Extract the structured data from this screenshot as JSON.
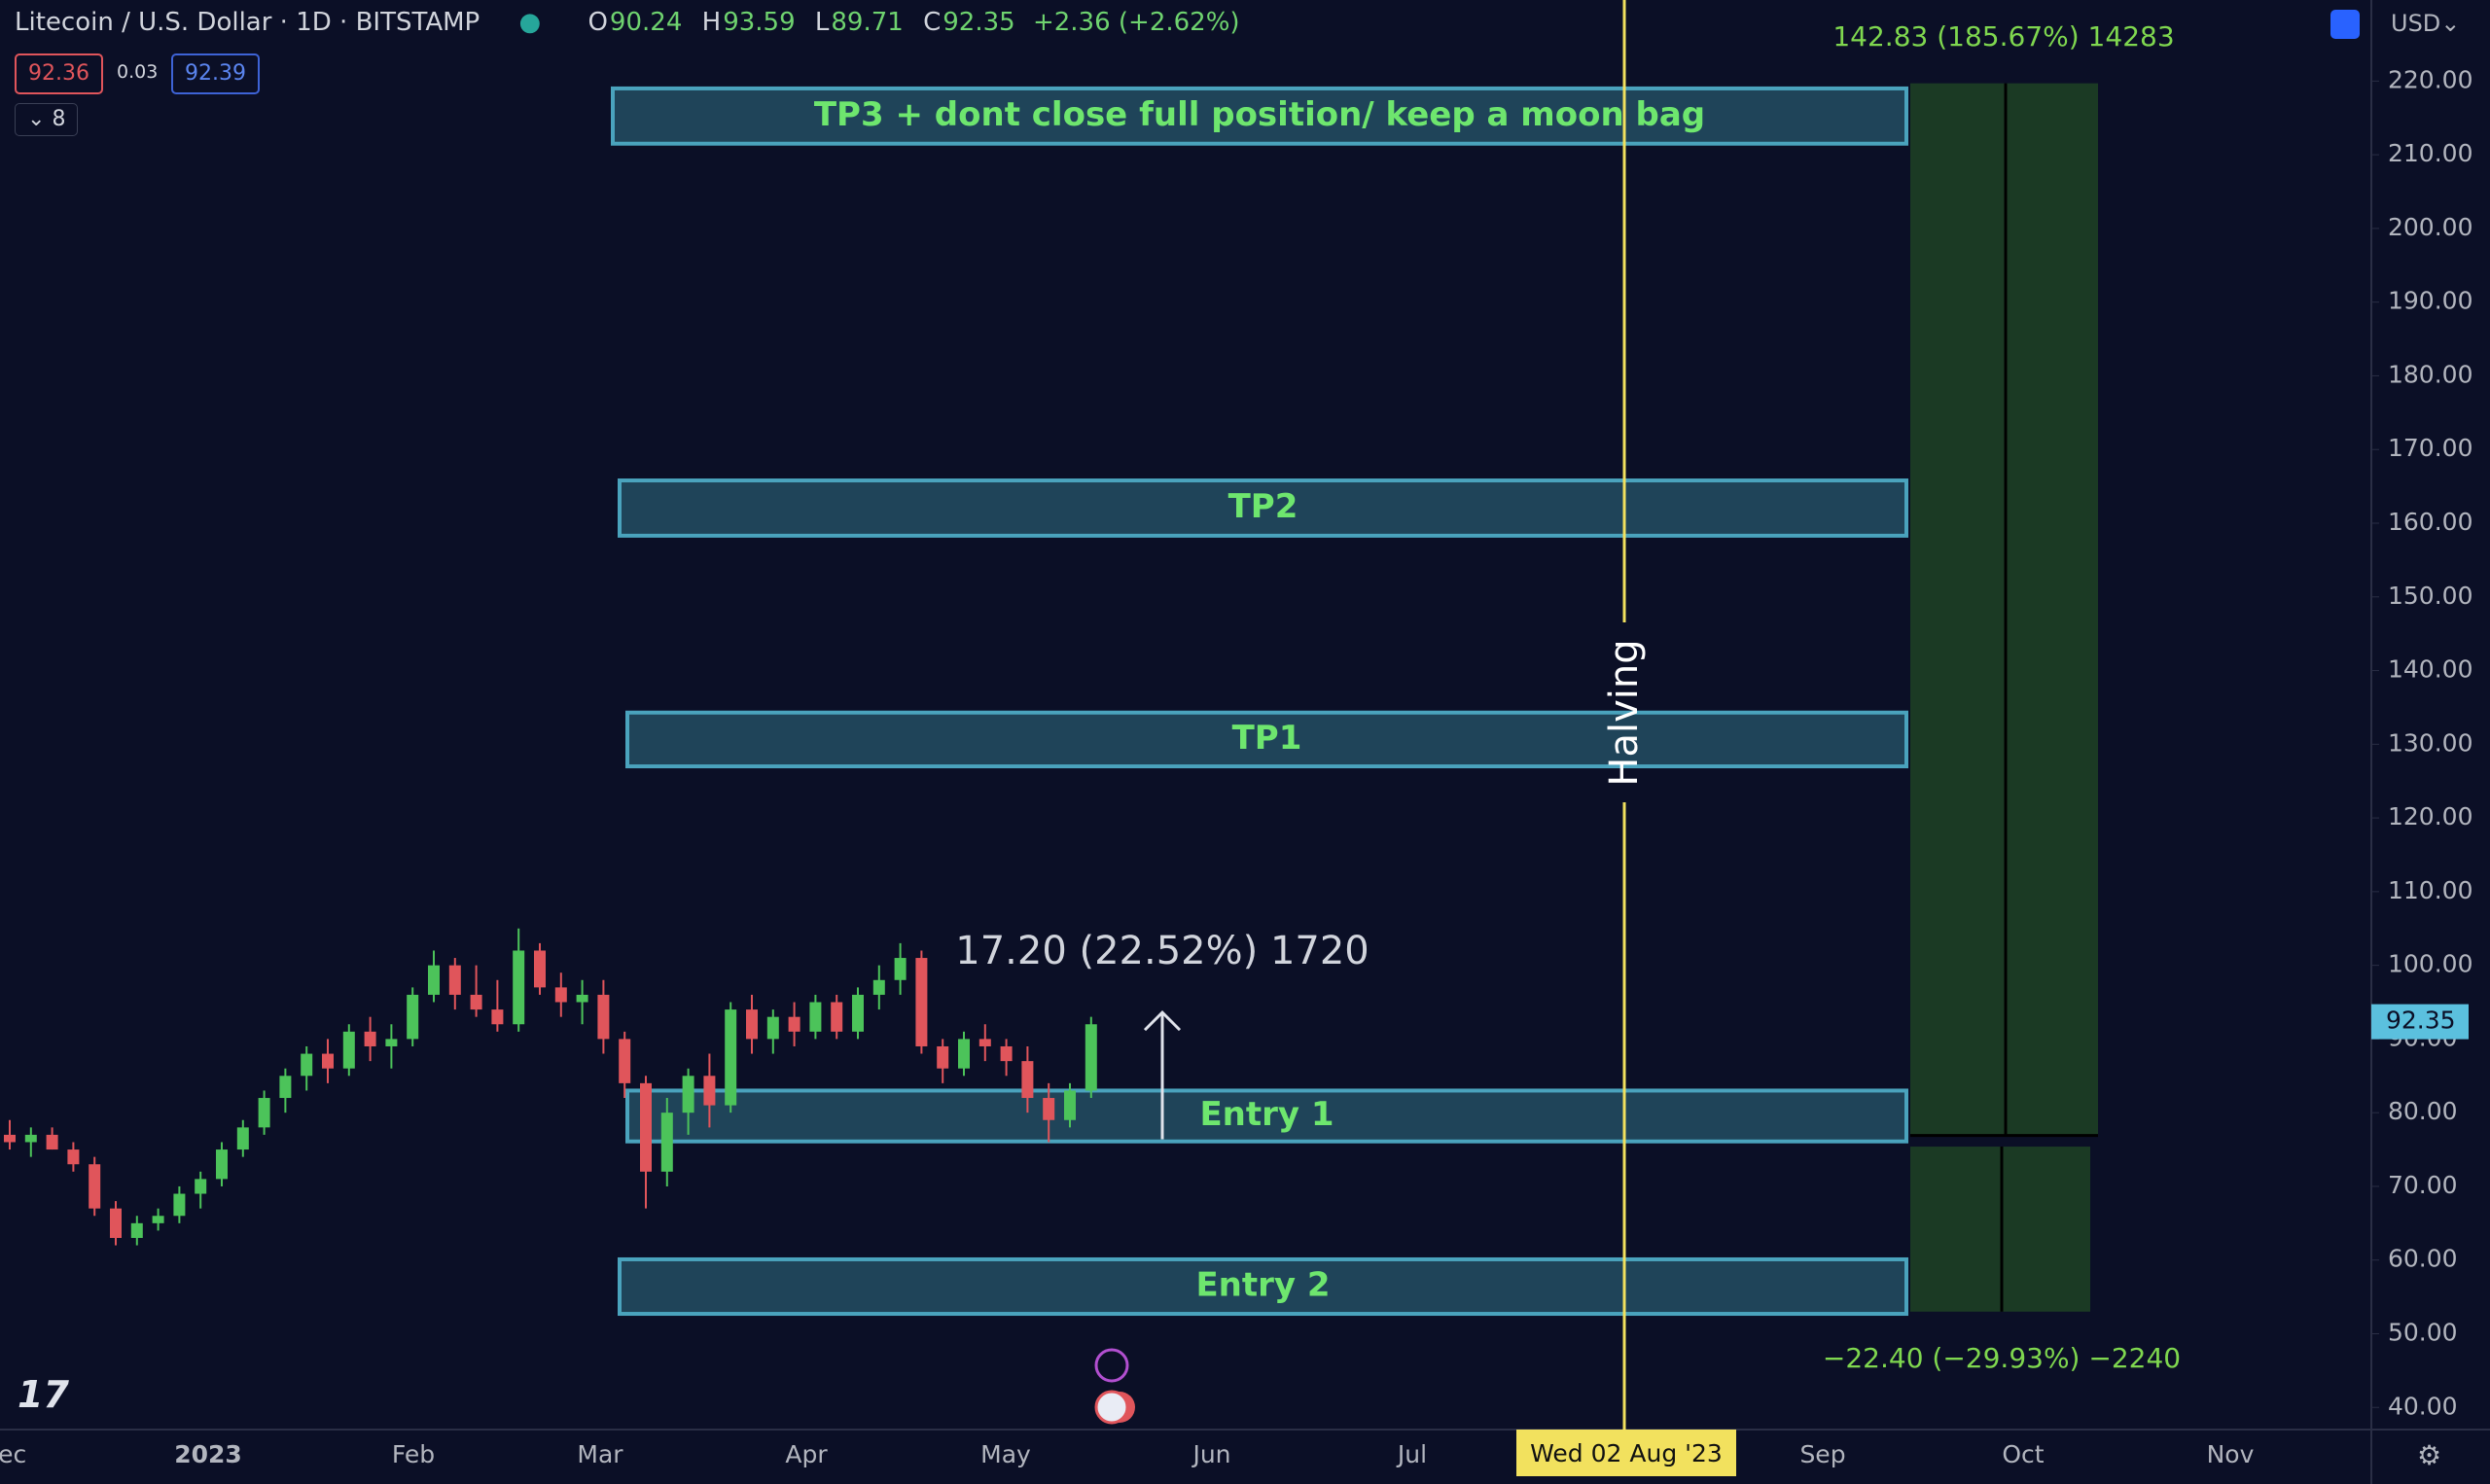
{
  "header": {
    "symbol": "Litecoin / U.S. Dollar · 1D · BITSTAMP",
    "ohlc": [
      {
        "key": "O",
        "value": 90.24
      },
      {
        "key": "H",
        "value": 93.59
      },
      {
        "key": "L",
        "value": 89.71
      },
      {
        "key": "C",
        "value": 92.35
      }
    ],
    "change": "+2.36 (+2.62%)",
    "bid": 92.36,
    "spread": 0.03,
    "ask": 92.39,
    "indicators": 8,
    "currency": "USD"
  },
  "chart_data": {
    "type": "candlestick",
    "ohlc": [
      [
        77,
        79,
        75,
        76
      ],
      [
        76,
        78,
        74,
        77
      ],
      [
        77,
        78,
        75,
        75
      ],
      [
        75,
        76,
        72,
        73
      ],
      [
        73,
        74,
        66,
        67
      ],
      [
        67,
        68,
        62,
        63
      ],
      [
        63,
        66,
        62,
        65
      ],
      [
        65,
        67,
        64,
        66
      ],
      [
        66,
        70,
        65,
        69
      ],
      [
        69,
        72,
        67,
        71
      ],
      [
        71,
        76,
        70,
        75
      ],
      [
        75,
        79,
        74,
        78
      ],
      [
        78,
        83,
        77,
        82
      ],
      [
        82,
        86,
        80,
        85
      ],
      [
        85,
        89,
        83,
        88
      ],
      [
        88,
        90,
        84,
        86
      ],
      [
        86,
        92,
        85,
        91
      ],
      [
        91,
        93,
        87,
        89
      ],
      [
        89,
        92,
        86,
        90
      ],
      [
        90,
        97,
        89,
        96
      ],
      [
        96,
        102,
        95,
        100
      ],
      [
        100,
        101,
        94,
        96
      ],
      [
        96,
        100,
        93,
        94
      ],
      [
        94,
        98,
        91,
        92
      ],
      [
        92,
        105,
        91,
        102
      ],
      [
        102,
        103,
        96,
        97
      ],
      [
        97,
        99,
        93,
        95
      ],
      [
        95,
        98,
        92,
        96
      ],
      [
        96,
        98,
        88,
        90
      ],
      [
        90,
        91,
        82,
        84
      ],
      [
        84,
        85,
        67,
        72
      ],
      [
        72,
        82,
        70,
        80
      ],
      [
        80,
        86,
        77,
        85
      ],
      [
        85,
        88,
        78,
        81
      ],
      [
        81,
        95,
        80,
        94
      ],
      [
        94,
        96,
        88,
        90
      ],
      [
        90,
        94,
        88,
        93
      ],
      [
        93,
        95,
        89,
        91
      ],
      [
        91,
        96,
        90,
        95
      ],
      [
        95,
        96,
        90,
        91
      ],
      [
        91,
        97,
        90,
        96
      ],
      [
        96,
        100,
        94,
        98
      ],
      [
        98,
        103,
        96,
        101
      ],
      [
        101,
        102,
        88,
        89
      ],
      [
        89,
        90,
        84,
        86
      ],
      [
        86,
        91,
        85,
        90
      ],
      [
        90,
        92,
        87,
        89
      ],
      [
        89,
        90,
        85,
        87
      ],
      [
        87,
        89,
        80,
        82
      ],
      [
        82,
        84,
        76,
        79
      ],
      [
        79,
        84,
        78,
        83
      ],
      [
        83,
        93,
        82,
        92
      ]
    ],
    "up_color": "#4cc35a",
    "down_color": "#e0555b",
    "ylim": [
      37,
      231
    ],
    "yticks": [
      {
        "value": 40,
        "label": "40.00"
      },
      {
        "value": 50,
        "label": "50.00"
      },
      {
        "value": 60,
        "label": "60.00"
      },
      {
        "value": 70,
        "label": "70.00"
      },
      {
        "value": 80,
        "label": "80.00"
      },
      {
        "value": 90,
        "label": "90.00"
      },
      {
        "value": 100,
        "label": "100.00"
      },
      {
        "value": 110,
        "label": "110.00"
      },
      {
        "value": 120,
        "label": "120.00"
      },
      {
        "value": 130,
        "label": "130.00"
      },
      {
        "value": 140,
        "label": "140.00"
      },
      {
        "value": 150,
        "label": "150.00"
      },
      {
        "value": 160,
        "label": "160.00"
      },
      {
        "value": 170,
        "label": "170.00"
      },
      {
        "value": 180,
        "label": "180.00"
      },
      {
        "value": 190,
        "label": "190.00"
      },
      {
        "value": 200,
        "label": "200.00"
      },
      {
        "value": 210,
        "label": "210.00"
      },
      {
        "value": 220,
        "label": "220.00"
      }
    ],
    "x_labels": [
      "Dec",
      "2023",
      "Feb",
      "Mar",
      "Apr",
      "May",
      "Jun",
      "Jul",
      "Sep",
      "Oct",
      "Nov"
    ],
    "crosshair_date": "Wed 02 Aug '23",
    "last_price": 92.35,
    "zones": [
      {
        "label": "TP3 + dont close full position/ keep a moon bag",
        "top": 219,
        "bottom": 211.5
      },
      {
        "label": "TP2",
        "top": 165.8,
        "bottom": 158.3
      },
      {
        "label": "TP1",
        "top": 134.3,
        "bottom": 127
      },
      {
        "label": "Entry 1",
        "top": 83,
        "bottom": 76.1
      },
      {
        "label": "Entry 2",
        "top": 60.1,
        "bottom": 52.7
      }
    ],
    "target": {
      "top": 219.7,
      "bottom": 76.9,
      "label": "142.83 (185.67%) 14283"
    },
    "stop": {
      "top": 75.4,
      "bottom": 53,
      "label": "−22.40 (−29.93%) −2240"
    },
    "measure": {
      "from": 76.4,
      "to": 93.6,
      "label": "17.20 (22.52%) 1720"
    },
    "vertical_note": "Halving"
  }
}
